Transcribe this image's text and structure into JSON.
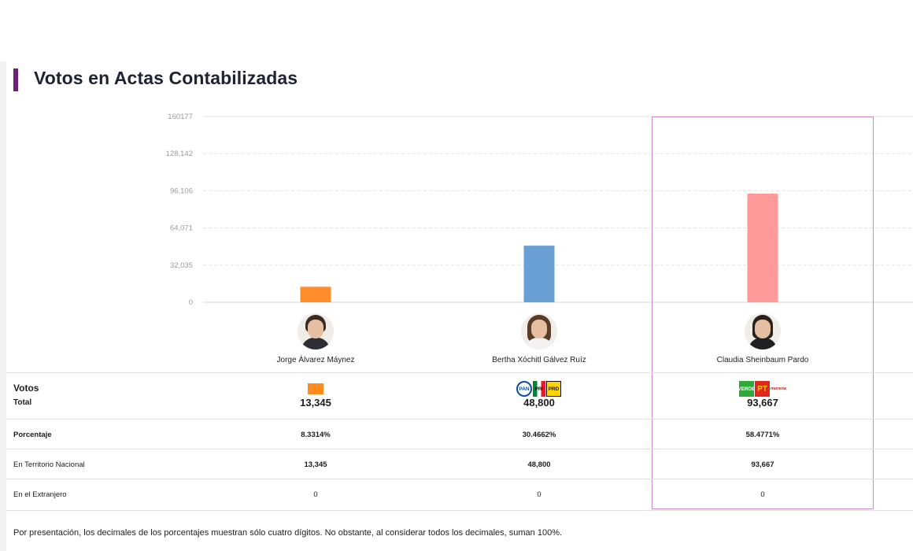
{
  "title": "Votos en Actas Contabilizadas",
  "chart_data": {
    "type": "bar",
    "categories": [
      "Jorge Álvarez Máynez",
      "Bertha Xóchitl Gálvez Ruíz",
      "Claudia Sheinbaum Pardo"
    ],
    "values": [
      13345,
      48800,
      93667
    ],
    "colors": [
      "#ff8c2a",
      "#6a9fd3",
      "#ff9a9a"
    ],
    "y_ticks": [
      "0",
      "32,035",
      "64,071",
      "96,106",
      "128,142",
      "160177"
    ],
    "ylim": [
      0,
      160177
    ],
    "grid": true,
    "highlighted_category": "Claudia Sheinbaum Pardo"
  },
  "candidates": [
    {
      "name": "Jorge Álvarez Máynez",
      "avatar": "man-portrait",
      "parties": [
        {
          "abbr": "",
          "icon": "movimiento-ciudadano-logo"
        }
      ],
      "total": "13,345",
      "porcentaje": "8.3314%",
      "nacional": "13,345",
      "extranjero": "0"
    },
    {
      "name": "Bertha Xóchitl Gálvez Ruíz",
      "avatar": "woman-portrait",
      "parties": [
        {
          "abbr": "PAN",
          "icon": "pan-logo"
        },
        {
          "abbr": "PRI",
          "icon": "pri-logo"
        },
        {
          "abbr": "PRD",
          "icon": "prd-logo"
        }
      ],
      "total": "48,800",
      "porcentaje": "30.4662%",
      "nacional": "48,800",
      "extranjero": "0"
    },
    {
      "name": "Claudia Sheinbaum Pardo",
      "avatar": "woman-portrait",
      "parties": [
        {
          "abbr": "VERDE",
          "icon": "pvem-logo"
        },
        {
          "abbr": "PT",
          "icon": "pt-logo"
        },
        {
          "abbr": "morena",
          "icon": "morena-logo"
        }
      ],
      "total": "93,667",
      "porcentaje": "58.4771%",
      "nacional": "93,667",
      "extranjero": "0"
    }
  ],
  "table": {
    "votos_label": "Votos",
    "total_label": "Total",
    "porcentaje_label": "Porcentaje",
    "nacional_label": "En Territorio Nacional",
    "extranjero_label": "En el Extranjero"
  },
  "footnote": "Por presentación, los decimales de los porcentajes muestran sólo cuatro dígitos. No obstante, al considerar todos los decimales, suman 100%."
}
